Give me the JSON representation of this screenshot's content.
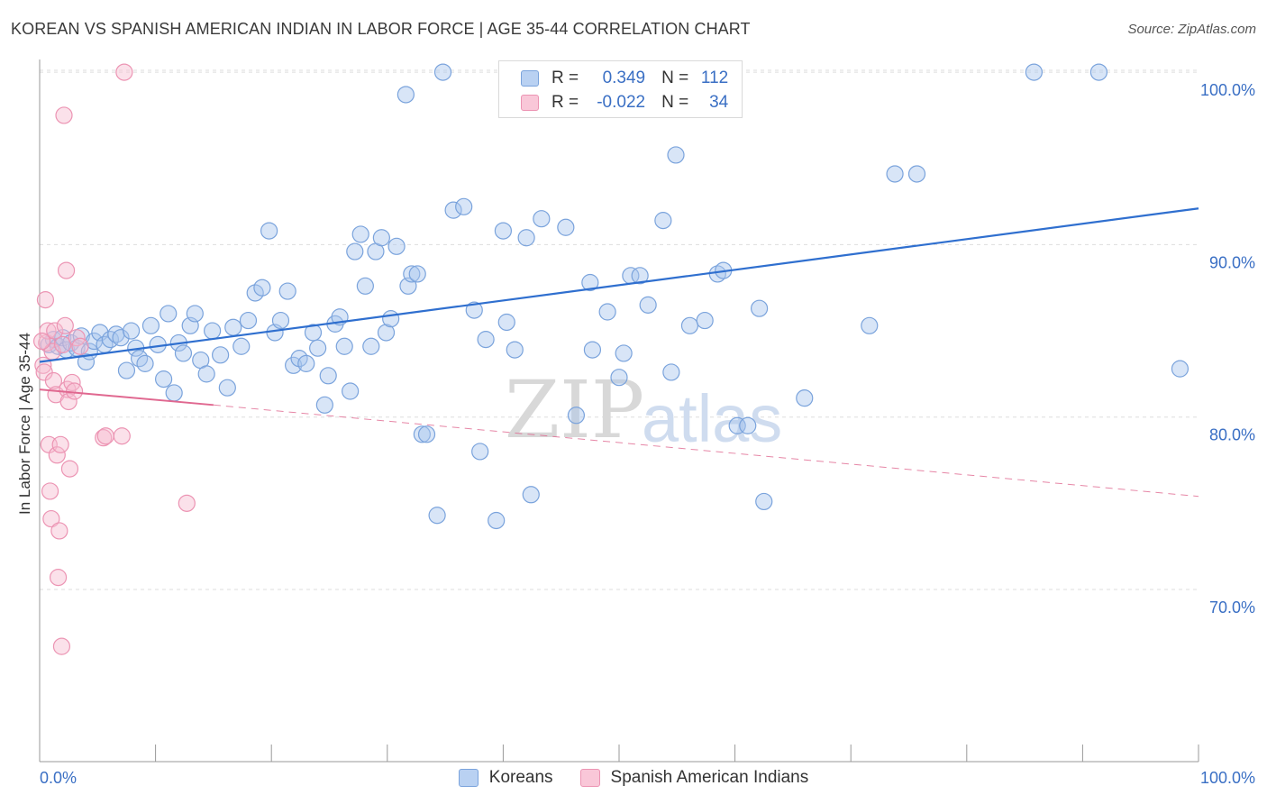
{
  "title": "KOREAN VS SPANISH AMERICAN INDIAN IN LABOR FORCE | AGE 35-44 CORRELATION CHART",
  "source": "Source: ZipAtlas.com",
  "watermark": {
    "zip": "ZIP",
    "atlas": "atlas"
  },
  "colors": {
    "korean_fill": "#a9c6ee",
    "korean_stroke": "#7aa3dc",
    "korean_line": "#2f6fcf",
    "spanish_fill": "#f7bcd0",
    "spanish_stroke": "#ec94b3",
    "spanish_line": "#e06890",
    "axis_label": "#3a6fc4",
    "grid": "#dddddd"
  },
  "legend": {
    "korean": {
      "r_label": "R =",
      "r_value": "0.349",
      "n_label": "N =",
      "n_value": "112"
    },
    "spanish": {
      "r_label": "R =",
      "r_value": "-0.022",
      "n_label": "N =",
      "n_value": "34"
    }
  },
  "chart_data": {
    "type": "scatter",
    "title": "KOREAN VS SPANISH AMERICAN INDIAN IN LABOR FORCE | AGE 35-44 CORRELATION CHART",
    "xlabel": "",
    "ylabel": "In Labor Force | Age 35-44",
    "xlim": [
      0,
      100
    ],
    "ylim": [
      60,
      101.5
    ],
    "x_tick_labels": [
      "0.0%",
      "100.0%"
    ],
    "y_ticks": [
      70,
      80,
      90,
      100
    ],
    "y_tick_labels": [
      "70.0%",
      "80.0%",
      "90.0%",
      "100.0%"
    ],
    "grid": true,
    "legend_position": "top-center",
    "series": [
      {
        "name": "Koreans",
        "trend": {
          "x": [
            0,
            100
          ],
          "y": [
            83.2,
            92.1
          ],
          "style": "solid"
        },
        "points": [
          [
            0.8,
            84.2
          ],
          [
            1.2,
            84.5
          ],
          [
            1.6,
            84.1
          ],
          [
            2.0,
            84.6
          ],
          [
            2.3,
            83.9
          ],
          [
            2.7,
            84.3
          ],
          [
            3.2,
            84.0
          ],
          [
            3.6,
            84.7
          ],
          [
            4.0,
            83.2
          ],
          [
            4.3,
            83.8
          ],
          [
            4.7,
            84.4
          ],
          [
            5.2,
            84.9
          ],
          [
            5.6,
            84.2
          ],
          [
            6.1,
            84.5
          ],
          [
            6.6,
            84.8
          ],
          [
            7.0,
            84.6
          ],
          [
            7.5,
            82.7
          ],
          [
            7.9,
            85.0
          ],
          [
            8.3,
            84.0
          ],
          [
            8.6,
            83.4
          ],
          [
            9.1,
            83.1
          ],
          [
            9.6,
            85.3
          ],
          [
            10.2,
            84.2
          ],
          [
            10.7,
            82.2
          ],
          [
            11.1,
            86.0
          ],
          [
            11.6,
            81.4
          ],
          [
            12.0,
            84.3
          ],
          [
            12.4,
            83.7
          ],
          [
            13.0,
            85.3
          ],
          [
            13.4,
            86.0
          ],
          [
            13.9,
            83.3
          ],
          [
            14.4,
            82.5
          ],
          [
            14.9,
            85.0
          ],
          [
            15.6,
            83.6
          ],
          [
            16.2,
            81.7
          ],
          [
            16.7,
            85.2
          ],
          [
            17.4,
            84.1
          ],
          [
            18.0,
            85.6
          ],
          [
            18.6,
            87.2
          ],
          [
            19.2,
            87.5
          ],
          [
            19.8,
            90.8
          ],
          [
            20.3,
            84.9
          ],
          [
            20.8,
            85.6
          ],
          [
            21.4,
            87.3
          ],
          [
            21.9,
            83.0
          ],
          [
            22.4,
            83.4
          ],
          [
            23.0,
            83.1
          ],
          [
            23.6,
            84.9
          ],
          [
            24.0,
            84.0
          ],
          [
            24.6,
            80.7
          ],
          [
            24.9,
            82.4
          ],
          [
            25.5,
            85.4
          ],
          [
            25.9,
            85.8
          ],
          [
            26.3,
            84.1
          ],
          [
            26.8,
            81.5
          ],
          [
            27.2,
            89.6
          ],
          [
            27.7,
            90.6
          ],
          [
            28.1,
            87.6
          ],
          [
            28.6,
            84.1
          ],
          [
            29.0,
            89.6
          ],
          [
            29.5,
            90.4
          ],
          [
            29.9,
            84.9
          ],
          [
            30.3,
            85.7
          ],
          [
            30.8,
            89.9
          ],
          [
            31.6,
            98.7
          ],
          [
            31.8,
            87.6
          ],
          [
            32.1,
            88.3
          ],
          [
            32.6,
            88.3
          ],
          [
            33.0,
            79.0
          ],
          [
            33.4,
            79.0
          ],
          [
            34.3,
            74.3
          ],
          [
            34.8,
            100.0
          ],
          [
            35.7,
            92.0
          ],
          [
            36.6,
            92.2
          ],
          [
            37.5,
            86.2
          ],
          [
            38.0,
            78.0
          ],
          [
            38.5,
            84.5
          ],
          [
            39.4,
            74.0
          ],
          [
            40.0,
            90.8
          ],
          [
            40.3,
            85.5
          ],
          [
            41.0,
            83.9
          ],
          [
            42.0,
            90.4
          ],
          [
            42.4,
            75.5
          ],
          [
            43.3,
            91.5
          ],
          [
            45.4,
            91.0
          ],
          [
            46.3,
            80.1
          ],
          [
            47.5,
            87.8
          ],
          [
            47.7,
            83.9
          ],
          [
            49.0,
            86.1
          ],
          [
            50.0,
            82.3
          ],
          [
            50.4,
            83.7
          ],
          [
            51.0,
            88.2
          ],
          [
            51.8,
            88.2
          ],
          [
            52.5,
            86.5
          ],
          [
            53.8,
            91.4
          ],
          [
            54.5,
            82.6
          ],
          [
            54.9,
            95.2
          ],
          [
            56.1,
            85.3
          ],
          [
            57.4,
            85.6
          ],
          [
            58.5,
            88.3
          ],
          [
            59.0,
            88.5
          ],
          [
            60.2,
            79.5
          ],
          [
            61.1,
            79.5
          ],
          [
            62.1,
            86.3
          ],
          [
            62.5,
            75.1
          ],
          [
            66.0,
            81.1
          ],
          [
            71.6,
            85.3
          ],
          [
            73.8,
            94.1
          ],
          [
            75.7,
            94.1
          ],
          [
            85.8,
            100.0
          ],
          [
            91.4,
            100.0
          ],
          [
            98.4,
            82.8
          ]
        ]
      },
      {
        "name": "Spanish American Indians",
        "trend": {
          "x": [
            0,
            15
          ],
          "y": [
            81.6,
            80.7
          ],
          "x_dashed_end": 100,
          "y_dashed_end": 75.4,
          "style": "solid-then-dashed"
        },
        "points": [
          [
            0.3,
            83.0
          ],
          [
            0.4,
            82.6
          ],
          [
            0.5,
            86.8
          ],
          [
            0.6,
            84.3
          ],
          [
            0.7,
            85.0
          ],
          [
            0.8,
            78.4
          ],
          [
            0.9,
            75.7
          ],
          [
            1.0,
            74.1
          ],
          [
            1.1,
            83.8
          ],
          [
            1.2,
            82.1
          ],
          [
            1.3,
            85.0
          ],
          [
            1.4,
            81.3
          ],
          [
            1.5,
            77.8
          ],
          [
            1.6,
            70.7
          ],
          [
            1.7,
            73.4
          ],
          [
            1.8,
            78.4
          ],
          [
            1.9,
            66.7
          ],
          [
            2.0,
            84.2
          ],
          [
            2.1,
            97.5
          ],
          [
            2.2,
            85.3
          ],
          [
            2.3,
            88.5
          ],
          [
            2.4,
            81.6
          ],
          [
            2.5,
            80.9
          ],
          [
            2.6,
            77.0
          ],
          [
            2.8,
            82.0
          ],
          [
            3.0,
            81.5
          ],
          [
            3.2,
            84.6
          ],
          [
            3.5,
            84.1
          ],
          [
            5.5,
            78.8
          ],
          [
            5.7,
            78.9
          ],
          [
            7.1,
            78.9
          ],
          [
            7.3,
            100.0
          ],
          [
            12.7,
            75.0
          ],
          [
            0.2,
            84.4
          ]
        ]
      }
    ]
  }
}
